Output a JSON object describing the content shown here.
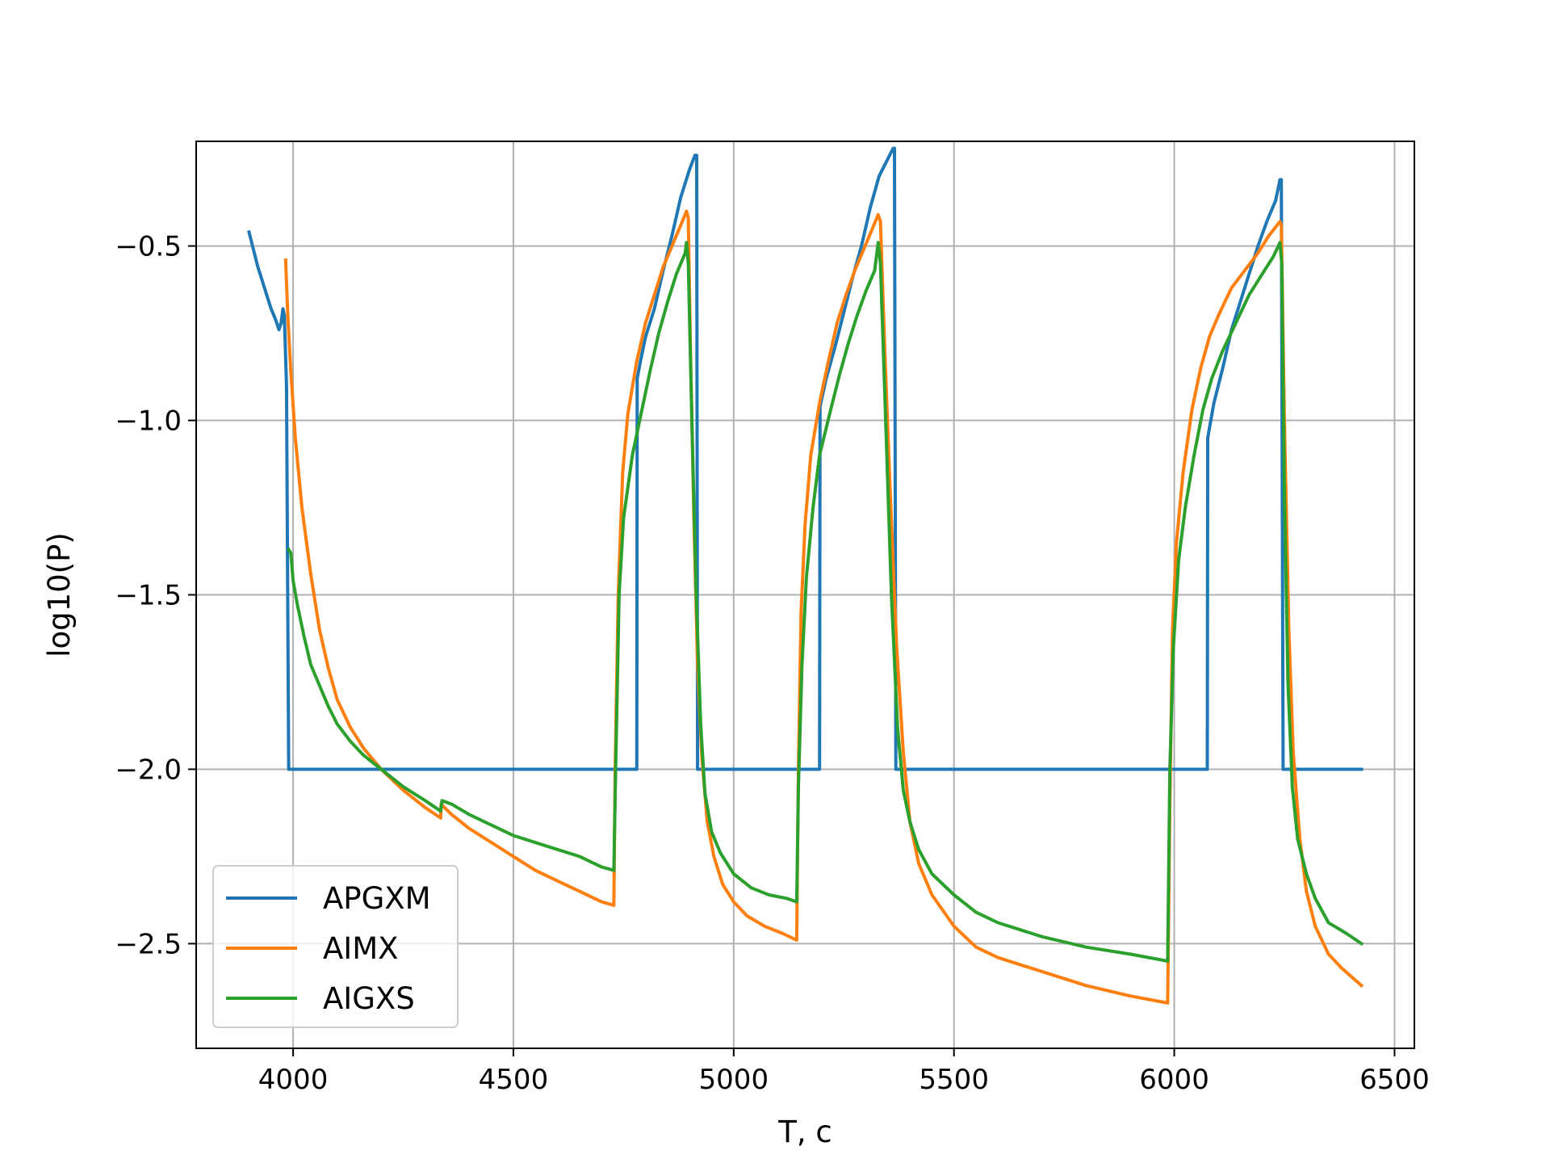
{
  "chart_data": {
    "type": "line",
    "title": "",
    "xlabel": "T, c",
    "ylabel": "log10(P)",
    "xlim": [
      3780,
      6545
    ],
    "ylim": [
      -2.8,
      -0.2
    ],
    "x_ticks": [
      4000,
      4500,
      5000,
      5500,
      6000,
      6500
    ],
    "y_ticks": [
      -0.5,
      -1.0,
      -1.5,
      -2.0,
      -2.5
    ],
    "x_tick_labels": [
      "4000",
      "4500",
      "5000",
      "5500",
      "6000",
      "6500"
    ],
    "y_tick_labels": [
      "−0.5",
      "−1.0",
      "−1.5",
      "−2.0",
      "−2.5"
    ],
    "grid": true,
    "legend_position": "lower-left",
    "series": [
      {
        "name": "APGXM",
        "color": "#1f77b4",
        "points": [
          [
            3900,
            -0.46
          ],
          [
            3910,
            -0.51
          ],
          [
            3920,
            -0.56
          ],
          [
            3930,
            -0.6
          ],
          [
            3940,
            -0.64
          ],
          [
            3950,
            -0.68
          ],
          [
            3960,
            -0.71
          ],
          [
            3968,
            -0.74
          ],
          [
            3973,
            -0.72
          ],
          [
            3977,
            -0.68
          ],
          [
            3980,
            -0.7
          ],
          [
            3985,
            -0.9
          ],
          [
            3990,
            -2.0
          ],
          [
            4780,
            -2.0
          ],
          [
            4781,
            -0.88
          ],
          [
            4790,
            -0.82
          ],
          [
            4800,
            -0.76
          ],
          [
            4820,
            -0.68
          ],
          [
            4840,
            -0.57
          ],
          [
            4860,
            -0.47
          ],
          [
            4880,
            -0.36
          ],
          [
            4900,
            -0.28
          ],
          [
            4912,
            -0.24
          ],
          [
            4916,
            -0.24
          ],
          [
            4918,
            -2.0
          ],
          [
            5195,
            -2.0
          ],
          [
            5196,
            -0.96
          ],
          [
            5210,
            -0.88
          ],
          [
            5230,
            -0.79
          ],
          [
            5250,
            -0.69
          ],
          [
            5270,
            -0.59
          ],
          [
            5290,
            -0.5
          ],
          [
            5310,
            -0.39
          ],
          [
            5330,
            -0.3
          ],
          [
            5350,
            -0.25
          ],
          [
            5362,
            -0.22
          ],
          [
            5365,
            -0.22
          ],
          [
            5368,
            -2.0
          ],
          [
            6075,
            -2.0
          ],
          [
            6076,
            -1.05
          ],
          [
            6090,
            -0.95
          ],
          [
            6110,
            -0.85
          ],
          [
            6130,
            -0.74
          ],
          [
            6150,
            -0.66
          ],
          [
            6170,
            -0.58
          ],
          [
            6190,
            -0.5
          ],
          [
            6210,
            -0.43
          ],
          [
            6230,
            -0.37
          ],
          [
            6240,
            -0.31
          ],
          [
            6243,
            -0.31
          ],
          [
            6247,
            -2.0
          ],
          [
            6425,
            -2.0
          ]
        ]
      },
      {
        "name": "AIMX",
        "color": "#ff7f0e",
        "points": [
          [
            3983,
            -0.54
          ],
          [
            3988,
            -0.7
          ],
          [
            3995,
            -0.86
          ],
          [
            4005,
            -1.05
          ],
          [
            4020,
            -1.25
          ],
          [
            4040,
            -1.44
          ],
          [
            4060,
            -1.6
          ],
          [
            4080,
            -1.71
          ],
          [
            4100,
            -1.8
          ],
          [
            4130,
            -1.88
          ],
          [
            4160,
            -1.94
          ],
          [
            4200,
            -2.0
          ],
          [
            4250,
            -2.06
          ],
          [
            4300,
            -2.11
          ],
          [
            4335,
            -2.14
          ],
          [
            4336,
            -2.1
          ],
          [
            4360,
            -2.13
          ],
          [
            4400,
            -2.17
          ],
          [
            4450,
            -2.21
          ],
          [
            4500,
            -2.25
          ],
          [
            4550,
            -2.29
          ],
          [
            4600,
            -2.32
          ],
          [
            4650,
            -2.35
          ],
          [
            4700,
            -2.38
          ],
          [
            4728,
            -2.39
          ],
          [
            4731,
            -2.0
          ],
          [
            4738,
            -1.5
          ],
          [
            4748,
            -1.15
          ],
          [
            4760,
            -0.98
          ],
          [
            4780,
            -0.83
          ],
          [
            4800,
            -0.72
          ],
          [
            4820,
            -0.64
          ],
          [
            4840,
            -0.56
          ],
          [
            4860,
            -0.5
          ],
          [
            4880,
            -0.44
          ],
          [
            4893,
            -0.4
          ],
          [
            4897,
            -0.42
          ],
          [
            4902,
            -0.8
          ],
          [
            4910,
            -1.3
          ],
          [
            4918,
            -1.7
          ],
          [
            4928,
            -1.97
          ],
          [
            4940,
            -2.15
          ],
          [
            4955,
            -2.25
          ],
          [
            4975,
            -2.33
          ],
          [
            5000,
            -2.38
          ],
          [
            5030,
            -2.42
          ],
          [
            5070,
            -2.45
          ],
          [
            5110,
            -2.47
          ],
          [
            5143,
            -2.49
          ],
          [
            5147,
            -2.0
          ],
          [
            5153,
            -1.55
          ],
          [
            5162,
            -1.3
          ],
          [
            5175,
            -1.1
          ],
          [
            5195,
            -0.95
          ],
          [
            5215,
            -0.83
          ],
          [
            5235,
            -0.72
          ],
          [
            5255,
            -0.64
          ],
          [
            5275,
            -0.57
          ],
          [
            5295,
            -0.51
          ],
          [
            5315,
            -0.45
          ],
          [
            5328,
            -0.41
          ],
          [
            5333,
            -0.43
          ],
          [
            5343,
            -0.8
          ],
          [
            5355,
            -1.2
          ],
          [
            5370,
            -1.65
          ],
          [
            5385,
            -1.95
          ],
          [
            5400,
            -2.15
          ],
          [
            5420,
            -2.27
          ],
          [
            5450,
            -2.36
          ],
          [
            5500,
            -2.45
          ],
          [
            5550,
            -2.51
          ],
          [
            5600,
            -2.54
          ],
          [
            5700,
            -2.58
          ],
          [
            5800,
            -2.62
          ],
          [
            5900,
            -2.65
          ],
          [
            5985,
            -2.67
          ],
          [
            5990,
            -2.1
          ],
          [
            5996,
            -1.6
          ],
          [
            6005,
            -1.35
          ],
          [
            6020,
            -1.15
          ],
          [
            6040,
            -0.97
          ],
          [
            6060,
            -0.85
          ],
          [
            6080,
            -0.76
          ],
          [
            6100,
            -0.7
          ],
          [
            6130,
            -0.62
          ],
          [
            6160,
            -0.57
          ],
          [
            6190,
            -0.52
          ],
          [
            6215,
            -0.47
          ],
          [
            6240,
            -0.43
          ],
          [
            6243,
            -0.44
          ],
          [
            6250,
            -1.0
          ],
          [
            6260,
            -1.6
          ],
          [
            6270,
            -1.95
          ],
          [
            6285,
            -2.2
          ],
          [
            6300,
            -2.35
          ],
          [
            6320,
            -2.45
          ],
          [
            6350,
            -2.53
          ],
          [
            6380,
            -2.57
          ],
          [
            6425,
            -2.62
          ]
        ]
      },
      {
        "name": "AIGXS",
        "color": "#2ca02c",
        "points": [
          [
            3990,
            -1.37
          ],
          [
            3995,
            -1.38
          ],
          [
            4000,
            -1.46
          ],
          [
            4010,
            -1.53
          ],
          [
            4025,
            -1.62
          ],
          [
            4040,
            -1.7
          ],
          [
            4060,
            -1.76
          ],
          [
            4080,
            -1.82
          ],
          [
            4100,
            -1.87
          ],
          [
            4130,
            -1.92
          ],
          [
            4160,
            -1.96
          ],
          [
            4200,
            -2.0
          ],
          [
            4250,
            -2.05
          ],
          [
            4300,
            -2.09
          ],
          [
            4335,
            -2.12
          ],
          [
            4338,
            -2.09
          ],
          [
            4360,
            -2.1
          ],
          [
            4400,
            -2.13
          ],
          [
            4450,
            -2.16
          ],
          [
            4500,
            -2.19
          ],
          [
            4550,
            -2.21
          ],
          [
            4600,
            -2.23
          ],
          [
            4650,
            -2.25
          ],
          [
            4700,
            -2.28
          ],
          [
            4728,
            -2.29
          ],
          [
            4732,
            -2.0
          ],
          [
            4740,
            -1.5
          ],
          [
            4750,
            -1.28
          ],
          [
            4770,
            -1.1
          ],
          [
            4790,
            -0.98
          ],
          [
            4810,
            -0.86
          ],
          [
            4830,
            -0.75
          ],
          [
            4850,
            -0.66
          ],
          [
            4870,
            -0.58
          ],
          [
            4890,
            -0.52
          ],
          [
            4893,
            -0.49
          ],
          [
            4897,
            -0.55
          ],
          [
            4905,
            -1.0
          ],
          [
            4915,
            -1.5
          ],
          [
            4925,
            -1.87
          ],
          [
            4935,
            -2.07
          ],
          [
            4950,
            -2.18
          ],
          [
            4970,
            -2.24
          ],
          [
            5000,
            -2.3
          ],
          [
            5040,
            -2.34
          ],
          [
            5080,
            -2.36
          ],
          [
            5120,
            -2.37
          ],
          [
            5143,
            -2.38
          ],
          [
            5147,
            -2.05
          ],
          [
            5155,
            -1.7
          ],
          [
            5165,
            -1.45
          ],
          [
            5180,
            -1.25
          ],
          [
            5195,
            -1.1
          ],
          [
            5220,
            -0.97
          ],
          [
            5240,
            -0.87
          ],
          [
            5260,
            -0.78
          ],
          [
            5280,
            -0.7
          ],
          [
            5300,
            -0.63
          ],
          [
            5320,
            -0.57
          ],
          [
            5328,
            -0.49
          ],
          [
            5333,
            -0.55
          ],
          [
            5345,
            -1.0
          ],
          [
            5358,
            -1.5
          ],
          [
            5372,
            -1.88
          ],
          [
            5385,
            -2.06
          ],
          [
            5400,
            -2.15
          ],
          [
            5420,
            -2.23
          ],
          [
            5450,
            -2.3
          ],
          [
            5500,
            -2.36
          ],
          [
            5550,
            -2.41
          ],
          [
            5600,
            -2.44
          ],
          [
            5700,
            -2.48
          ],
          [
            5800,
            -2.51
          ],
          [
            5900,
            -2.53
          ],
          [
            5985,
            -2.55
          ],
          [
            5990,
            -2.0
          ],
          [
            5998,
            -1.65
          ],
          [
            6010,
            -1.4
          ],
          [
            6025,
            -1.25
          ],
          [
            6045,
            -1.1
          ],
          [
            6065,
            -0.97
          ],
          [
            6085,
            -0.88
          ],
          [
            6110,
            -0.8
          ],
          [
            6140,
            -0.72
          ],
          [
            6170,
            -0.64
          ],
          [
            6200,
            -0.58
          ],
          [
            6225,
            -0.53
          ],
          [
            6240,
            -0.49
          ],
          [
            6244,
            -0.55
          ],
          [
            6250,
            -1.2
          ],
          [
            6258,
            -1.75
          ],
          [
            6268,
            -2.05
          ],
          [
            6280,
            -2.2
          ],
          [
            6300,
            -2.3
          ],
          [
            6320,
            -2.37
          ],
          [
            6350,
            -2.44
          ],
          [
            6390,
            -2.47
          ],
          [
            6425,
            -2.5
          ]
        ]
      }
    ]
  }
}
